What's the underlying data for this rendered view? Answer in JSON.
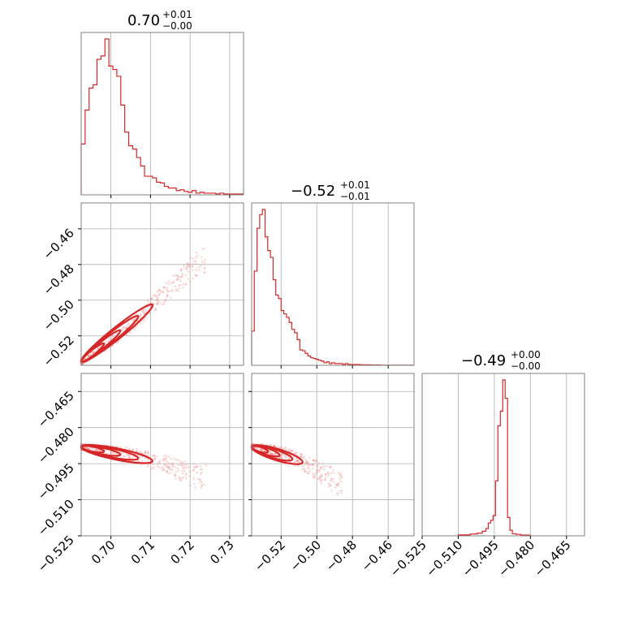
{
  "chart_data": {
    "type": "corner",
    "color": "#d62728",
    "grid": true,
    "parameters": [
      {
        "title_value": "0.70",
        "title_plus": "+0.01",
        "title_minus": "−0.00"
      },
      {
        "title_value": "−0.52",
        "title_plus": "+0.01",
        "title_minus": "−0.01"
      },
      {
        "title_value": "−0.49",
        "title_plus": "+0.00",
        "title_minus": "−0.00"
      }
    ],
    "axes": {
      "p0": {
        "range": [
          0.6925,
          0.7335
        ],
        "ticks": [
          0.7,
          0.71,
          0.72,
          0.73
        ],
        "labels": [
          "0.70",
          "0.71",
          "0.72",
          "0.73"
        ]
      },
      "p1": {
        "range": [
          -0.5365,
          -0.4455
        ],
        "ticks": [
          -0.52,
          -0.5,
          -0.48,
          -0.46
        ],
        "labels": [
          "−0.52",
          "−0.50",
          "−0.48",
          "−0.46"
        ]
      },
      "p2": {
        "range": [
          -0.525,
          -0.4575
        ],
        "ticks": [
          -0.525,
          -0.51,
          -0.495,
          -0.48,
          -0.465
        ],
        "labels": [
          "−0.525",
          "−0.510",
          "−0.495",
          "−0.480",
          "−0.465"
        ]
      }
    },
    "hist_p0": {
      "edges": [
        0.6925,
        0.6935,
        0.6945,
        0.6955,
        0.6965,
        0.6975,
        0.6985,
        0.6995,
        0.7005,
        0.7015,
        0.7025,
        0.7035,
        0.7045,
        0.7055,
        0.7065,
        0.7075,
        0.7085,
        0.7095,
        0.7105,
        0.7115,
        0.7125,
        0.7135,
        0.7145,
        0.7155,
        0.7165,
        0.7175,
        0.7185,
        0.7195,
        0.7205,
        0.7215,
        0.7225,
        0.7235,
        0.7245,
        0.7255,
        0.7265,
        0.7275,
        0.7285,
        0.7295,
        0.7305,
        0.7315,
        0.7335
      ],
      "counts": [
        0.3,
        0.5,
        0.63,
        0.65,
        0.8,
        0.82,
        0.92,
        0.76,
        0.74,
        0.7,
        0.53,
        0.37,
        0.29,
        0.27,
        0.22,
        0.17,
        0.11,
        0.11,
        0.1,
        0.075,
        0.07,
        0.05,
        0.04,
        0.04,
        0.025,
        0.03,
        0.02,
        0.015,
        0.025,
        0.01,
        0.015,
        0.01,
        0.01,
        0.01,
        0.005,
        0.01,
        0.005,
        0.005,
        0.005,
        0.005
      ]
    },
    "hist_p1": {
      "edges": [
        -0.5365,
        -0.535,
        -0.5335,
        -0.532,
        -0.5305,
        -0.529,
        -0.5275,
        -0.526,
        -0.5245,
        -0.523,
        -0.5215,
        -0.52,
        -0.5185,
        -0.517,
        -0.5155,
        -0.514,
        -0.5125,
        -0.511,
        -0.5095,
        -0.508,
        -0.5065,
        -0.505,
        -0.5035,
        -0.502,
        -0.5005,
        -0.499,
        -0.4975,
        -0.496,
        -0.4945,
        -0.493,
        -0.4915,
        -0.49,
        -0.4885,
        -0.487,
        -0.4855,
        -0.484,
        -0.4825,
        -0.481,
        -0.4795,
        -0.478,
        -0.4755,
        -0.47,
        -0.464,
        -0.4455
      ],
      "counts": [
        0.2,
        0.55,
        0.8,
        0.88,
        0.91,
        0.75,
        0.67,
        0.63,
        0.5,
        0.41,
        0.39,
        0.32,
        0.3,
        0.28,
        0.25,
        0.21,
        0.19,
        0.15,
        0.09,
        0.085,
        0.07,
        0.055,
        0.045,
        0.04,
        0.035,
        0.03,
        0.025,
        0.015,
        0.02,
        0.01,
        0.015,
        0.01,
        0.01,
        0.01,
        0.005,
        0.01,
        0.005,
        0.005,
        0.005,
        0.005,
        0.003,
        0.002,
        0.001
      ]
    },
    "hist_p2": {
      "edges": [
        -0.51,
        -0.505,
        -0.502,
        -0.5,
        -0.4985,
        -0.4975,
        -0.4965,
        -0.4955,
        -0.4945,
        -0.4935,
        -0.4925,
        -0.4915,
        -0.4905,
        -0.4895,
        -0.4885,
        -0.4875,
        -0.486,
        -0.484,
        -0.48
      ],
      "counts": [
        0.005,
        0.01,
        0.015,
        0.025,
        0.04,
        0.07,
        0.085,
        0.11,
        0.3,
        0.6,
        0.68,
        0.85,
        0.75,
        0.1,
        0.03,
        0.012,
        0.008,
        0.004
      ]
    },
    "correlations": {
      "p0_p1": {
        "x": [
          0.6925,
          0.6985,
          0.7045,
          0.7105,
          0.7165,
          0.7225
        ],
        "y": [
          -0.5345,
          -0.5255,
          -0.516,
          -0.5025,
          -0.4905,
          -0.478
        ]
      },
      "p0_p2": {
        "x": [
          0.6925,
          0.6985,
          0.7045,
          0.7105,
          0.7165,
          0.7225
        ],
        "y": [
          -0.488,
          -0.4895,
          -0.491,
          -0.494,
          -0.497,
          -0.501
        ]
      },
      "p1_p2": {
        "x": [
          -0.5365,
          -0.528,
          -0.518,
          -0.508,
          -0.498,
          -0.488
        ],
        "y": [
          -0.488,
          -0.489,
          -0.491,
          -0.4945,
          -0.4985,
          -0.503
        ]
      }
    }
  }
}
